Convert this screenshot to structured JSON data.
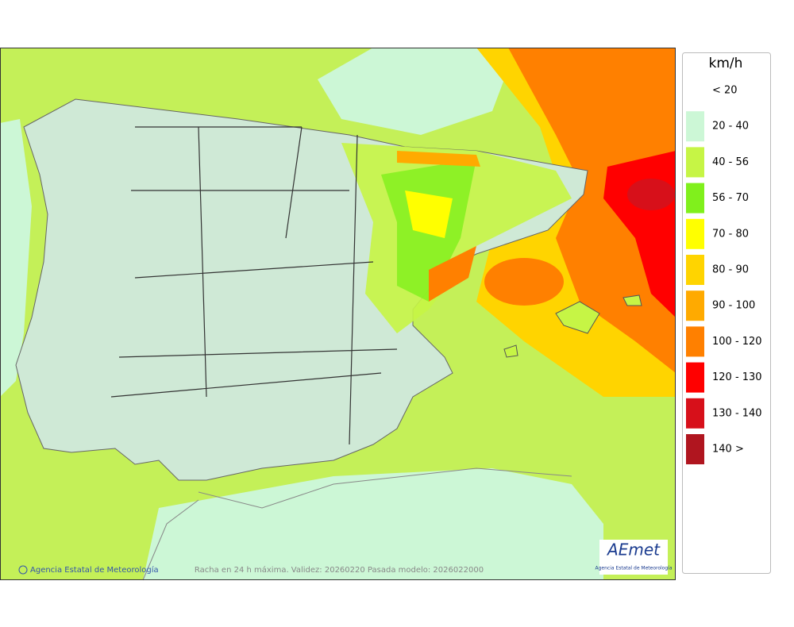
{
  "map": {
    "footer": {
      "credit": "Agencia Estatal de Meteorología",
      "caption": "Racha en 24 h máxima. Validez: 20260220 Pasada modelo: 2026022000"
    },
    "logo": {
      "name": "AEmet",
      "subtitle": "Agencia Estatal de Meteorología"
    },
    "legend": {
      "unit": "km/h",
      "items": [
        {
          "label": "< 20",
          "color": "#ffffff"
        },
        {
          "label": "20 - 40",
          "color": "#ccf7d6"
        },
        {
          "label": "40 - 56",
          "color": "#c6f545"
        },
        {
          "label": "56 - 70",
          "color": "#80f01c"
        },
        {
          "label": "70 - 80",
          "color": "#ffff00"
        },
        {
          "label": "80 - 90",
          "color": "#ffd400"
        },
        {
          "label": "90 - 100",
          "color": "#ffaa00"
        },
        {
          "label": "100 - 120",
          "color": "#ff8000"
        },
        {
          "label": "120 - 130",
          "color": "#ff0000"
        },
        {
          "label": "130 - 140",
          "color": "#d7101a"
        },
        {
          "label": "140 >",
          "color": "#b0151f"
        }
      ]
    }
  }
}
